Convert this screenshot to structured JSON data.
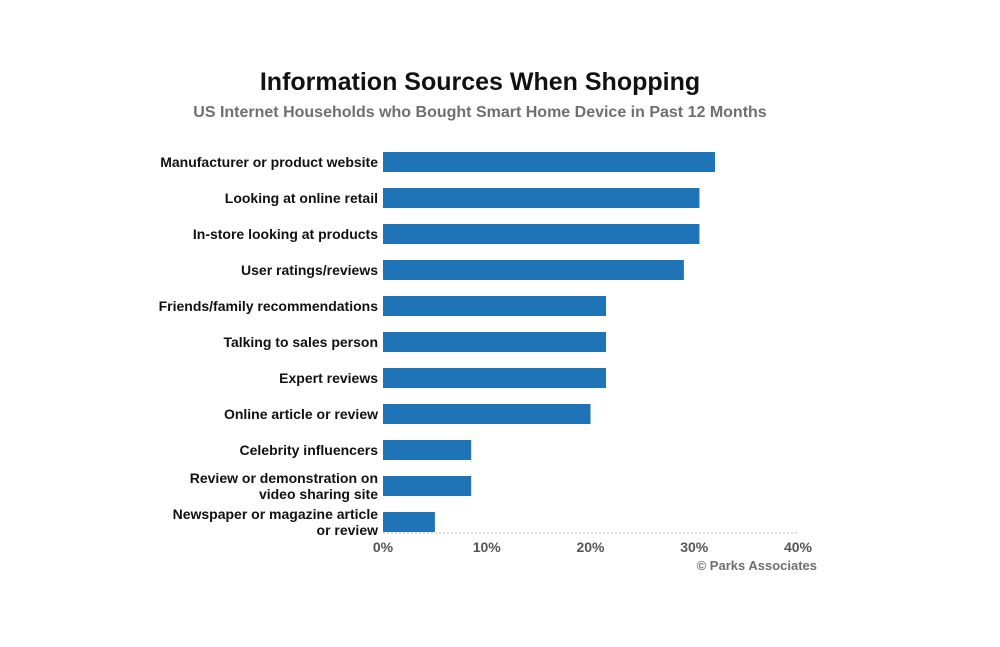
{
  "chart_data": {
    "type": "bar",
    "orientation": "horizontal",
    "title": "Information Sources When Shopping",
    "subtitle": "US Internet Households who Bought Smart Home Device in Past 12 Months",
    "categories": [
      "Manufacturer or product website",
      "Looking at online retail",
      "In-store looking at products",
      "User ratings/reviews",
      "Friends/family recommendations",
      "Talking to sales person",
      "Expert reviews",
      "Online article or review",
      "Celebrity influencers",
      "Review or demonstration on video sharing site",
      "Newspaper or magazine article or review"
    ],
    "values": [
      32,
      30.5,
      30.5,
      29,
      21.5,
      21.5,
      21.5,
      20,
      8.5,
      8.5,
      5
    ],
    "xlim": [
      0,
      40
    ],
    "xticks": [
      "0%",
      "10%",
      "20%",
      "30%",
      "40%"
    ],
    "bar_color": "#1f73b7",
    "grid": false,
    "credit": "© Parks Associates"
  }
}
